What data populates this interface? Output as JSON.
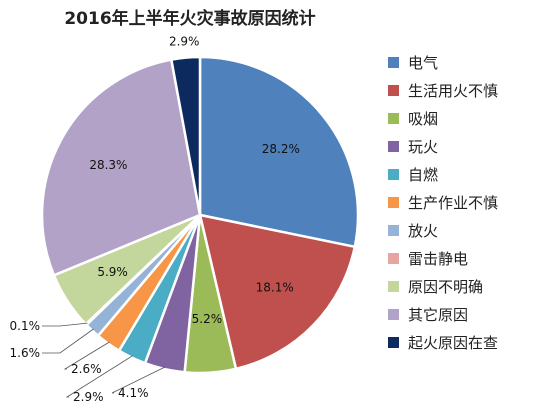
{
  "chart_data": {
    "type": "pie",
    "title": "2016年上半年火灾事故原因统计",
    "categories": [
      "电气",
      "生活用火不慎",
      "吸烟",
      "玩火",
      "自燃",
      "生产作业不慎",
      "放火",
      "雷击静电",
      "原因不明确",
      "其它原因",
      "起火原因在查"
    ],
    "values": [
      28.2,
      18.1,
      5.2,
      4.1,
      2.9,
      2.6,
      1.6,
      0.1,
      5.9,
      28.3,
      2.9
    ],
    "labels": [
      "28.2%",
      "18.1%",
      "5.2%",
      "4.1%",
      "2.9%",
      "2.6%",
      "1.6%",
      "0.1%",
      "5.9%",
      "28.3%",
      "2.9%"
    ],
    "colors": [
      "#4f81bd",
      "#c0504d",
      "#9bbb59",
      "#8064a2",
      "#4bacc6",
      "#f79646",
      "#95b3d7",
      "#e6a4a2",
      "#c3d69b",
      "#b3a2c7",
      "#0d2a5e"
    ],
    "legend_position": "right"
  }
}
